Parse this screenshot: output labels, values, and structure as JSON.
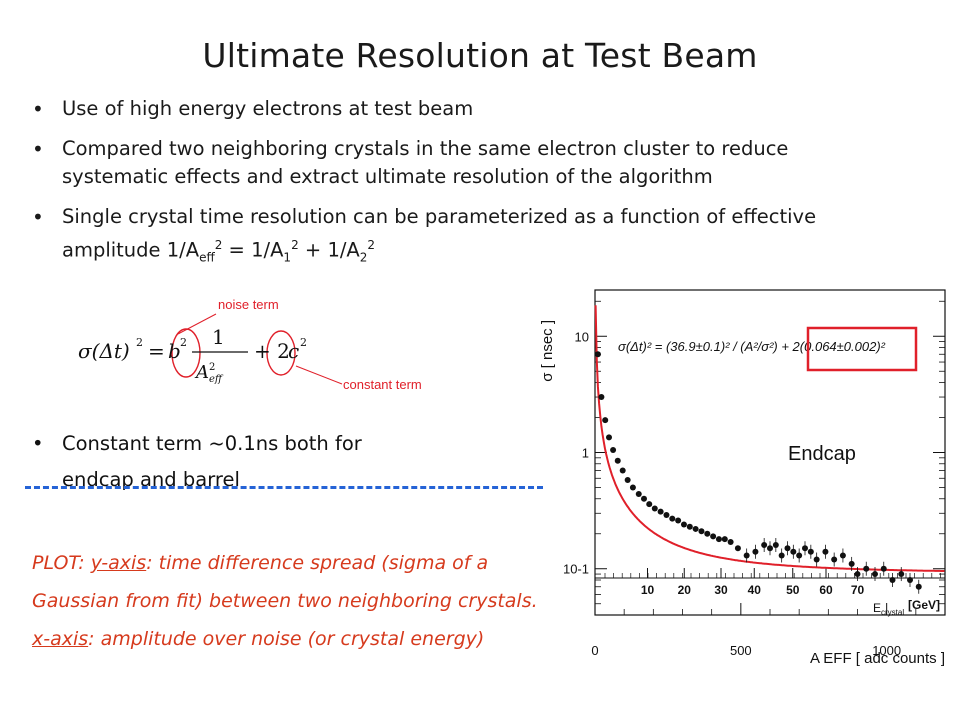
{
  "slide": {
    "title": "Ultimate Resolution at Test Beam",
    "bullets": [
      {
        "text": "Use of high energy electrons at test beam"
      },
      {
        "text": "Compared two neighboring crystals in the same electron cluster to reduce systematic effects and extract ultimate resolution of the algorithm"
      },
      {
        "text_pre": "Single crystal time resolution can be parameterized as a function of effective amplitude 1/A",
        "sub1": "eff",
        "sup1": "2",
        "mid1": " = 1/A",
        "sub2": "1",
        "sup2": "2",
        "mid2": " + 1/A",
        "sub3": "2",
        "sup3": "2"
      }
    ],
    "annotations": {
      "noise": "noise term",
      "constant": "constant term"
    },
    "bullet4": {
      "line1": "Constant term ~0.1ns both for",
      "line2": "endcap and barrel"
    },
    "plot_note": {
      "prefix": "PLOT: ",
      "y_label": "y-axis",
      "y_text": ": time difference spread (sigma of a Gaussian from fit) between two neighboring crystals. ",
      "x_label": "x-axis",
      "x_text": ": amplitude over noise (or crystal energy)"
    }
  },
  "chart_data": {
    "type": "scatter",
    "title": "",
    "ylabel": "σ  [ nsec ]",
    "xlabel": "A EFF  [ adc counts ]",
    "xlim": [
      0,
      1200
    ],
    "ylim": [
      0.04,
      25
    ],
    "ylog": true,
    "xticks": [
      0,
      500,
      1000
    ],
    "yticks": [
      {
        "v": 0.1,
        "label": "10-1"
      },
      {
        "v": 1,
        "label": "1"
      },
      {
        "v": 10,
        "label": "10"
      }
    ],
    "energy_axis": {
      "label": "E",
      "sub": "crystal",
      "unit": "[GeV]",
      "ticks": [
        10,
        20,
        30,
        40,
        50,
        60,
        70
      ],
      "ticks_x": [
        150,
        255,
        360,
        455,
        565,
        660,
        750
      ]
    },
    "legend_text": "Endcap",
    "fit_formula": "σ(Δt)² = (36.9±0.1)² / (A²/σ²) + 2(0.064±0.002)²",
    "fit": {
      "N": 36.9,
      "C": 0.064
    },
    "fit_color": "#e0202a",
    "series": [
      {
        "x": [
          10,
          22,
          35,
          48,
          62,
          78,
          95,
          112,
          130,
          150,
          168,
          186,
          205,
          225,
          245,
          265,
          285,
          305,
          325,
          345,
          365,
          385,
          405,
          425,
          445,
          465,
          490,
          520,
          550,
          580,
          600,
          620,
          640,
          660,
          680,
          700,
          720,
          740,
          760,
          790,
          820,
          850,
          880,
          900,
          930,
          960,
          990,
          1020,
          1050,
          1080,
          1110
        ],
        "y": [
          7.0,
          3.0,
          1.9,
          1.35,
          1.05,
          0.85,
          0.7,
          0.58,
          0.5,
          0.44,
          0.4,
          0.36,
          0.33,
          0.31,
          0.29,
          0.27,
          0.26,
          0.24,
          0.23,
          0.22,
          0.21,
          0.2,
          0.19,
          0.18,
          0.18,
          0.17,
          0.15,
          0.13,
          0.14,
          0.16,
          0.15,
          0.16,
          0.13,
          0.15,
          0.14,
          0.13,
          0.15,
          0.14,
          0.12,
          0.14,
          0.12,
          0.13,
          0.11,
          0.09,
          0.1,
          0.09,
          0.1,
          0.08,
          0.09,
          0.08,
          0.07
        ]
      }
    ]
  }
}
